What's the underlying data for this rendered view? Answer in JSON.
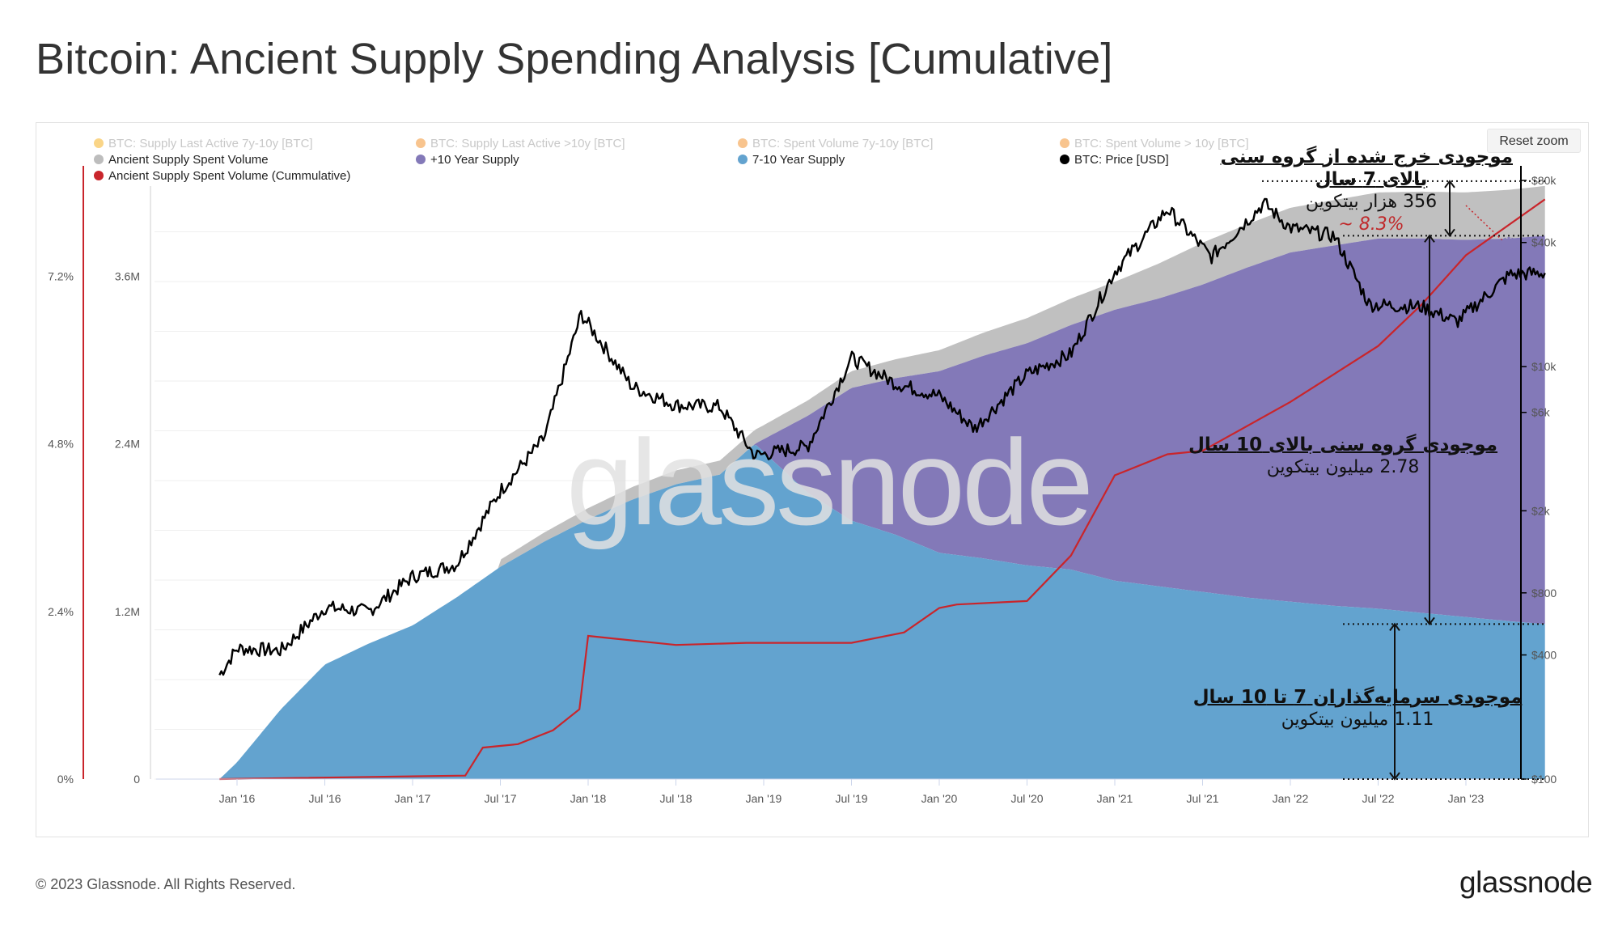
{
  "title": "Bitcoin: Ancient Supply Spending Analysis [Cumulative]",
  "reset_zoom_label": "Reset zoom",
  "footer": "© 2023 Glassnode. All Rights Reserved.",
  "brand": "glassnode",
  "watermark": "glassnode",
  "colors": {
    "ten_year_supply": "#8379b8",
    "seven_ten_supply": "#63a3cf",
    "spent_volume": "#bdbdbd",
    "cumulative": "#c9252b",
    "price": "#000000",
    "faded_dot_a": "#f5b324",
    "faded_dot_b": "#f29431"
  },
  "legend": [
    {
      "label": "BTC: Supply Last Active 7y-10y [BTC]",
      "color": "#f5b324",
      "faded": true
    },
    {
      "label": "BTC: Supply Last Active >10y [BTC]",
      "color": "#f29431",
      "faded": true
    },
    {
      "label": "BTC: Spent Volume 7y-10y [BTC]",
      "color": "#f29431",
      "faded": true
    },
    {
      "label": "BTC: Spent Volume > 10y [BTC]",
      "color": "#f29431",
      "faded": true
    },
    {
      "label": "Ancient Supply Spent Volume",
      "color": "#bdbdbd",
      "faded": false
    },
    {
      "label": "+10 Year Supply",
      "color": "#8379b8",
      "faded": false
    },
    {
      "label": "7-10 Year Supply",
      "color": "#63a3cf",
      "faded": false
    },
    {
      "label": "BTC: Price [USD]",
      "color": "#000000",
      "faded": false
    },
    {
      "label": "Ancient Supply Spent Volume (Cummulative)",
      "color": "#c9252b",
      "faded": false
    }
  ],
  "annotations": {
    "spent": {
      "line1": "موجودی خرج شده از گروه سنی",
      "line2": "بالای 7 سال",
      "sub": "356 هزار بیتکوین",
      "pct": "~ 8.3%"
    },
    "ten_year": {
      "head": "موجودی گروه سنی بالای 10 سال",
      "sub": "2.78 میلیون بیتکوین"
    },
    "seven_ten": {
      "head": "موجودی سرمایه‌گذاران 7 تا 10 سال",
      "sub": "1.11 میلیون بیتکوین"
    }
  },
  "chart_data": {
    "type": "area",
    "x_ticks": [
      "Jan '16",
      "Jul '16",
      "Jan '17",
      "Jul '17",
      "Jan '18",
      "Jul '18",
      "Jan '19",
      "Jul '19",
      "Jan '20",
      "Jul '20",
      "Jan '21",
      "Jul '21",
      "Jan '22",
      "Jul '22",
      "Jan '23"
    ],
    "y_supply_ticks": [
      "0",
      "1.2M",
      "2.4M",
      "3.6M"
    ],
    "y_pct_ticks": [
      "0%",
      "2.4%",
      "4.8%",
      "7.2%"
    ],
    "y_price_ticks": [
      "$100",
      "$400",
      "$800",
      "$2k",
      "$6k",
      "$10k",
      "$40k",
      "$80k"
    ],
    "supply_axis_ylim": [
      0,
      4.5
    ],
    "supply_units": "million BTC",
    "price_scale": "log",
    "series": [
      {
        "name": "7-10 Year Supply",
        "x": [
          2015.9,
          2016.0,
          2016.25,
          2016.5,
          2016.75,
          2017.0,
          2017.25,
          2017.5,
          2017.75,
          2018.0,
          2018.25,
          2018.5,
          2018.75,
          2018.95,
          2019.25,
          2019.5,
          2019.75,
          2020.0,
          2020.25,
          2020.5,
          2020.75,
          2021.0,
          2021.25,
          2021.5,
          2021.75,
          2022.0,
          2022.25,
          2022.5,
          2022.75,
          2023.0,
          2023.25,
          2023.45
        ],
        "values": [
          0,
          0.12,
          0.5,
          0.82,
          0.97,
          1.1,
          1.3,
          1.52,
          1.7,
          1.86,
          2.0,
          2.11,
          2.18,
          2.4,
          2.05,
          1.85,
          1.75,
          1.62,
          1.58,
          1.53,
          1.5,
          1.42,
          1.38,
          1.34,
          1.3,
          1.27,
          1.24,
          1.22,
          1.19,
          1.16,
          1.13,
          1.11
        ]
      },
      {
        "name": "+10 Year Supply",
        "x": [
          2018.95,
          2019.25,
          2019.5,
          2019.75,
          2020.0,
          2020.25,
          2020.5,
          2020.75,
          2021.0,
          2021.25,
          2021.5,
          2021.75,
          2022.0,
          2022.25,
          2022.5,
          2022.75,
          2023.0,
          2023.25,
          2023.45
        ],
        "values": [
          0,
          0.55,
          0.95,
          1.12,
          1.3,
          1.45,
          1.59,
          1.75,
          1.94,
          2.06,
          2.2,
          2.36,
          2.5,
          2.58,
          2.65,
          2.68,
          2.7,
          2.74,
          2.78
        ]
      },
      {
        "name": "Ancient Supply Spent Volume",
        "x": [
          2017.5,
          2018.0,
          2018.5,
          2019.0,
          2019.5,
          2020.0,
          2020.5,
          2021.0,
          2021.5,
          2022.0,
          2022.5,
          2023.0,
          2023.45
        ],
        "values": [
          0.05,
          0.08,
          0.1,
          0.1,
          0.12,
          0.15,
          0.18,
          0.2,
          0.3,
          0.32,
          0.33,
          0.34,
          0.356
        ]
      },
      {
        "name": "Ancient Supply Spent Volume (Cummulative)",
        "x": [
          2015.9,
          2017.3,
          2017.4,
          2017.6,
          2017.8,
          2017.95,
          2018.0,
          2018.5,
          2018.9,
          2019.5,
          2019.8,
          2020.0,
          2020.1,
          2020.5,
          2020.75,
          2021.0,
          2021.3,
          2021.5,
          2022.0,
          2022.25,
          2022.5,
          2022.75,
          2023.0,
          2023.45
        ],
        "values": [
          0,
          0.05,
          0.45,
          0.5,
          0.7,
          1.0,
          2.05,
          1.92,
          1.95,
          1.95,
          2.1,
          2.45,
          2.5,
          2.55,
          3.2,
          4.35,
          4.65,
          4.7,
          5.4,
          5.8,
          6.2,
          6.8,
          7.5,
          8.3
        ]
      },
      {
        "name": "BTC: Price [USD]",
        "x": [
          2015.9,
          2016.0,
          2016.25,
          2016.5,
          2016.75,
          2017.0,
          2017.25,
          2017.5,
          2017.75,
          2017.96,
          2018.25,
          2018.5,
          2018.75,
          2018.95,
          2019.25,
          2019.5,
          2019.75,
          2020.0,
          2020.2,
          2020.5,
          2020.75,
          2021.0,
          2021.3,
          2021.55,
          2021.85,
          2022.0,
          2022.25,
          2022.45,
          2022.75,
          2022.95,
          2023.25,
          2023.45
        ],
        "values": [
          320,
          430,
          420,
          680,
          650,
          960,
          1100,
          2500,
          4500,
          18000,
          8000,
          6500,
          6400,
          3700,
          4100,
          11000,
          8300,
          7200,
          5000,
          9200,
          11500,
          29000,
          58000,
          34000,
          62000,
          47000,
          43000,
          20000,
          19500,
          16500,
          28000,
          28500
        ]
      }
    ]
  }
}
